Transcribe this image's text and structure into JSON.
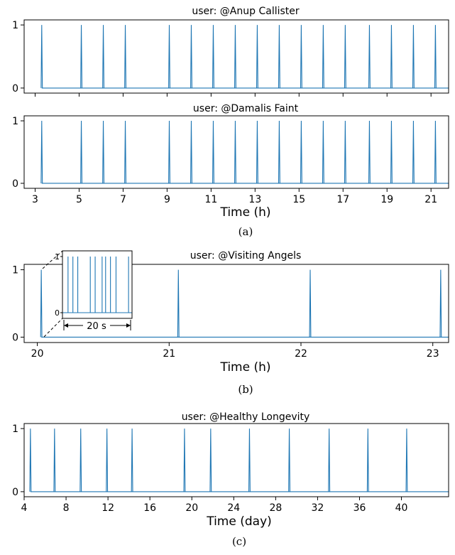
{
  "colors": {
    "series": "#1f77b4",
    "axes": "#000000"
  },
  "chart_data": [
    {
      "id": "a1",
      "type": "line",
      "title": "user: @Anup Callister",
      "xlabel": "",
      "ylabel": "",
      "xlim": [
        2.5,
        21.8
      ],
      "ylim": [
        -0.08,
        1.08
      ],
      "yticks": [
        0,
        1
      ],
      "xticks": [],
      "spikes": [
        3.3,
        5.1,
        6.1,
        7.1,
        9.1,
        10.1,
        11.1,
        12.1,
        13.1,
        14.1,
        15.1,
        16.1,
        17.1,
        18.2,
        19.2,
        20.2,
        21.2
      ]
    },
    {
      "id": "a2",
      "type": "line",
      "title": "user: @Damalis Faint",
      "xlabel": "Time (h)",
      "ylabel": "",
      "xlim": [
        2.5,
        21.8
      ],
      "ylim": [
        -0.08,
        1.08
      ],
      "yticks": [
        0,
        1
      ],
      "xticks": [
        3,
        5,
        7,
        9,
        11,
        13,
        15,
        17,
        19,
        21
      ],
      "spikes": [
        3.3,
        5.1,
        6.1,
        7.1,
        9.1,
        10.1,
        11.1,
        12.1,
        13.1,
        14.1,
        15.1,
        16.1,
        17.1,
        18.2,
        19.2,
        20.2,
        21.2
      ],
      "caption": "(a)"
    },
    {
      "id": "b",
      "type": "line",
      "title": "user: @Visiting Angels",
      "xlabel": "Time (h)",
      "ylabel": "",
      "xlim": [
        19.9,
        23.12
      ],
      "ylim": [
        -0.08,
        1.08
      ],
      "yticks": [
        0,
        1
      ],
      "xticks": [
        20,
        21,
        22,
        23
      ],
      "spikes": [
        20.03,
        21.07,
        22.07,
        23.06
      ],
      "inset": {
        "yticks": [
          0,
          1
        ],
        "span_label": "20 s",
        "spikes": [
          0.08,
          0.15,
          0.22,
          0.4,
          0.47,
          0.57,
          0.62,
          0.69,
          0.77,
          0.95
        ]
      },
      "caption": "(b)"
    },
    {
      "id": "c",
      "type": "line",
      "title": "user: @Healthy Longevity",
      "xlabel": "Time (day)",
      "ylabel": "",
      "xlim": [
        4,
        44.5
      ],
      "ylim": [
        -0.08,
        1.08
      ],
      "yticks": [
        0,
        1
      ],
      "xticks": [
        4,
        8,
        12,
        16,
        20,
        24,
        28,
        32,
        36,
        40
      ],
      "spikes": [
        4.6,
        6.9,
        9.4,
        11.9,
        14.3,
        19.3,
        21.8,
        25.5,
        29.3,
        33.1,
        36.8,
        40.5
      ],
      "caption": "(c)"
    }
  ]
}
